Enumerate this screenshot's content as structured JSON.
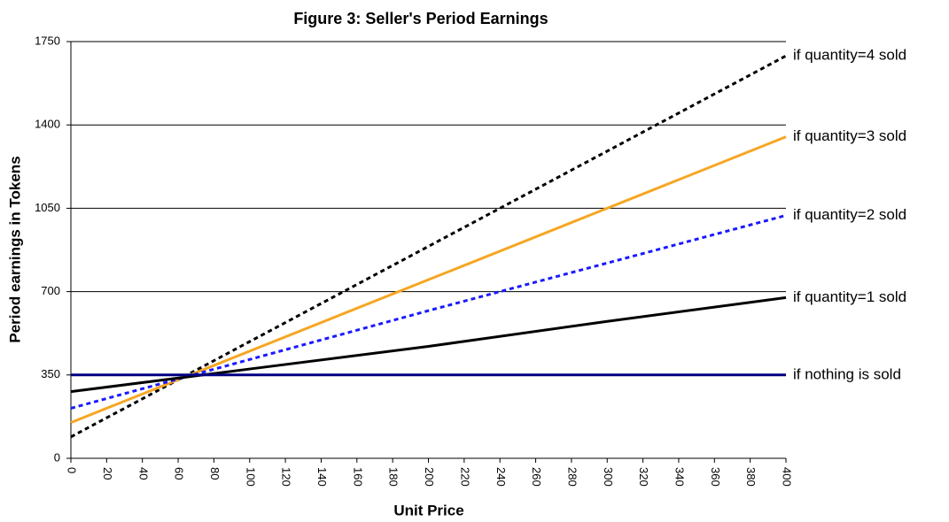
{
  "chart_data": {
    "type": "line",
    "title": "Figure 3: Seller's Period Earnings",
    "x_label": "Unit Price",
    "y_label": "Period earnings in Tokens",
    "x": [
      0,
      100,
      200,
      300,
      400
    ],
    "xlim": [
      0,
      400
    ],
    "xticks": [
      0,
      20,
      40,
      60,
      80,
      100,
      120,
      140,
      160,
      180,
      200,
      220,
      240,
      260,
      280,
      300,
      320,
      340,
      360,
      380,
      400
    ],
    "ylim": [
      0,
      1750
    ],
    "yticks": [
      0,
      350,
      700,
      1050,
      1400,
      1750
    ],
    "grid": true,
    "series": [
      {
        "name": "if quantity=4 sold",
        "color": "#000000",
        "style": "dotted",
        "values": [
          90,
          490,
          890,
          1290,
          1690
        ]
      },
      {
        "name": "if quantity=3 sold",
        "color": "#f5a623",
        "style": "solid",
        "values": [
          150,
          450,
          750,
          1050,
          1350
        ]
      },
      {
        "name": "if quantity=2 sold",
        "color": "#1a1aff",
        "style": "dotted",
        "values": [
          210,
          415,
          620,
          820,
          1020
        ]
      },
      {
        "name": "if quantity=1 sold",
        "color": "#000000",
        "style": "solid",
        "values": [
          280,
          375,
          470,
          575,
          675
        ]
      },
      {
        "name": "if nothing is sold",
        "color": "#000080",
        "style": "solid",
        "values": [
          350,
          350,
          350,
          350,
          350
        ]
      }
    ]
  }
}
